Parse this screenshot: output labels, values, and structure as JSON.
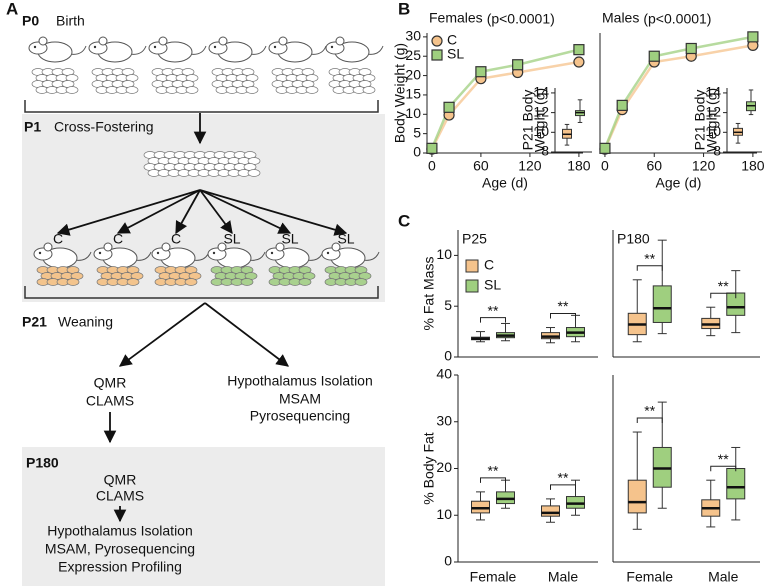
{
  "panels": [
    "A",
    "B",
    "C"
  ],
  "panel_a": {
    "stages": [
      {
        "label": "P0",
        "text": "Birth"
      },
      {
        "label": "P1",
        "text": "Cross-Fostering"
      },
      {
        "label": "P21",
        "text": "Weaning"
      },
      {
        "label": "P180"
      }
    ],
    "groups": [
      "C",
      "C",
      "C",
      "SL",
      "SL",
      "SL"
    ],
    "p21_left": [
      "QMR",
      "CLAMS"
    ],
    "p21_right": [
      "Hypothalamus Isolation",
      "MSAM",
      "Pyrosequencing"
    ],
    "p180_top": [
      "QMR",
      "CLAMS"
    ],
    "p180_bottom": [
      "Hypothalamus Isolation",
      "MSAM, Pyrosequencing",
      "Expression Profiling"
    ]
  },
  "chart_data": [
    {
      "type": "line",
      "title": "Females",
      "subtitle": "(p<0.0001)",
      "ylabel": "Body Weight (g)",
      "xlabel": "Age (d)",
      "x": [
        0,
        21,
        60,
        105,
        180
      ],
      "xlim": [
        -6,
        185
      ],
      "xticks": [
        0,
        60,
        120,
        180
      ],
      "ylim": [
        0,
        31
      ],
      "yticks": [
        0,
        5,
        10,
        15,
        20,
        25,
        30
      ],
      "legend": "upper left",
      "series": [
        {
          "name": "C",
          "color": "#f5c38c",
          "marker": "circle",
          "values": [
            1.0,
            9.8,
            19.2,
            20.8,
            23.5
          ]
        },
        {
          "name": "SL",
          "color": "#9fcf7f",
          "marker": "square",
          "values": [
            1.2,
            11.8,
            21.0,
            22.8,
            26.7
          ]
        }
      ]
    },
    {
      "type": "box",
      "inset": true,
      "ylabel": [
        "P21 Body",
        "Weight (g)"
      ],
      "ylim": [
        8,
        14.5
      ],
      "yticks": [
        8,
        10,
        12,
        14
      ],
      "series": [
        {
          "color": "#f5c38c",
          "min": [
            8.7
          ],
          "q1": [
            9.4
          ],
          "median": [
            9.8
          ],
          "q3": [
            10.3
          ],
          "max": [
            10.8
          ]
        },
        {
          "color": "#9fcf7f",
          "min": [
            11.0
          ],
          "q1": [
            11.7
          ],
          "median": [
            12.0
          ],
          "q3": [
            12.2
          ],
          "max": [
            13.3
          ]
        }
      ]
    },
    {
      "type": "line",
      "title": "Males",
      "subtitle": "(p<0.0001)",
      "xlabel": "Age (d)",
      "x": [
        0,
        21,
        60,
        105,
        180
      ],
      "xlim": [
        -6,
        185
      ],
      "xticks": [
        0,
        60,
        120,
        180
      ],
      "ylim": [
        0,
        31
      ],
      "series": [
        {
          "color": "#f5c38c",
          "marker": "circle",
          "values": [
            1.0,
            11.2,
            23.5,
            25.0,
            27.8
          ]
        },
        {
          "color": "#9fcf7f",
          "marker": "square",
          "values": [
            1.2,
            12.3,
            25.0,
            27.0,
            30.0
          ]
        }
      ]
    },
    {
      "type": "box",
      "inset": true,
      "ylabel": [
        "P21 Body",
        "Weight (g)"
      ],
      "ylim": [
        8,
        14.5
      ],
      "yticks": [
        8,
        10,
        12,
        14
      ],
      "series": [
        {
          "color": "#f5c38c",
          "min": [
            8.9
          ],
          "q1": [
            9.7
          ],
          "median": [
            10.0
          ],
          "q3": [
            10.4
          ],
          "max": [
            10.9
          ]
        },
        {
          "color": "#9fcf7f",
          "min": [
            11.8
          ],
          "q1": [
            12.2
          ],
          "median": [
            12.7
          ],
          "q3": [
            13.1
          ],
          "max": [
            14.3
          ]
        }
      ]
    },
    {
      "type": "box",
      "title": "P25",
      "ylabel": "% Fat Mass",
      "ylim": [
        0,
        12.5
      ],
      "yticks": [
        0,
        5,
        10
      ],
      "legend": "upper left",
      "series": [
        {
          "name": "C",
          "color": "#f5c38c",
          "min": [
            1.5,
            1.4
          ],
          "q1": [
            1.7,
            1.8
          ],
          "median": [
            1.8,
            2.0
          ],
          "q3": [
            1.95,
            2.4
          ],
          "max": [
            2.5,
            2.9
          ]
        },
        {
          "name": "SL",
          "color": "#9fcf7f",
          "min": [
            1.6,
            1.5
          ],
          "q1": [
            1.9,
            2.0
          ],
          "median": [
            2.1,
            2.4
          ],
          "q3": [
            2.4,
            2.9
          ],
          "max": [
            3.3,
            4.1
          ]
        }
      ],
      "annotations": [
        {
          "text": "**",
          "category": 0
        },
        {
          "text": "**",
          "category": 1
        }
      ]
    },
    {
      "type": "box",
      "title": "P180",
      "ylim": [
        0,
        12.5
      ],
      "series": [
        {
          "color": "#f5c38c",
          "min": [
            1.5,
            2.1
          ],
          "q1": [
            2.2,
            2.8
          ],
          "median": [
            3.2,
            3.2
          ],
          "q3": [
            4.3,
            3.8
          ],
          "max": [
            7.6,
            4.9
          ]
        },
        {
          "color": "#9fcf7f",
          "min": [
            2.3,
            2.4
          ],
          "q1": [
            3.4,
            4.1
          ],
          "median": [
            4.8,
            4.9
          ],
          "q3": [
            7.0,
            6.3
          ],
          "max": [
            11.5,
            8.5
          ]
        }
      ],
      "annotations": [
        {
          "text": "**",
          "category": 0
        },
        {
          "text": "**",
          "category": 1
        }
      ]
    },
    {
      "type": "box",
      "ylabel": "% Body Fat",
      "categories": [
        "Female",
        "Male"
      ],
      "ylim": [
        0,
        40
      ],
      "yticks": [
        0,
        10,
        20,
        30,
        40
      ],
      "series": [
        {
          "color": "#f5c38c",
          "min": [
            9.0,
            8.5
          ],
          "q1": [
            10.5,
            9.8
          ],
          "median": [
            11.5,
            10.5
          ],
          "q3": [
            13.0,
            12.0
          ],
          "max": [
            15.0,
            13.5
          ]
        },
        {
          "color": "#9fcf7f",
          "min": [
            11.5,
            10.0
          ],
          "q1": [
            12.5,
            11.5
          ],
          "median": [
            13.5,
            12.5
          ],
          "q3": [
            15.0,
            14.0
          ],
          "max": [
            17.5,
            17.5
          ]
        }
      ],
      "annotations": [
        {
          "text": "**",
          "category": 0
        },
        {
          "text": "**",
          "category": 1
        }
      ]
    },
    {
      "type": "box",
      "categories": [
        "Female",
        "Male"
      ],
      "ylim": [
        0,
        40
      ],
      "series": [
        {
          "color": "#f5c38c",
          "min": [
            7.0,
            7.5
          ],
          "q1": [
            10.5,
            9.8
          ],
          "median": [
            12.8,
            11.5
          ],
          "q3": [
            17.5,
            13.3
          ],
          "max": [
            27.8,
            17.5
          ]
        },
        {
          "color": "#9fcf7f",
          "min": [
            11.5,
            9.0
          ],
          "q1": [
            16.0,
            13.5
          ],
          "median": [
            20.0,
            16.0
          ],
          "q3": [
            24.5,
            20.0
          ],
          "max": [
            34.2,
            24.5
          ]
        }
      ],
      "annotations": [
        {
          "text": "**",
          "category": 0
        },
        {
          "text": "**",
          "category": 1
        }
      ]
    }
  ]
}
